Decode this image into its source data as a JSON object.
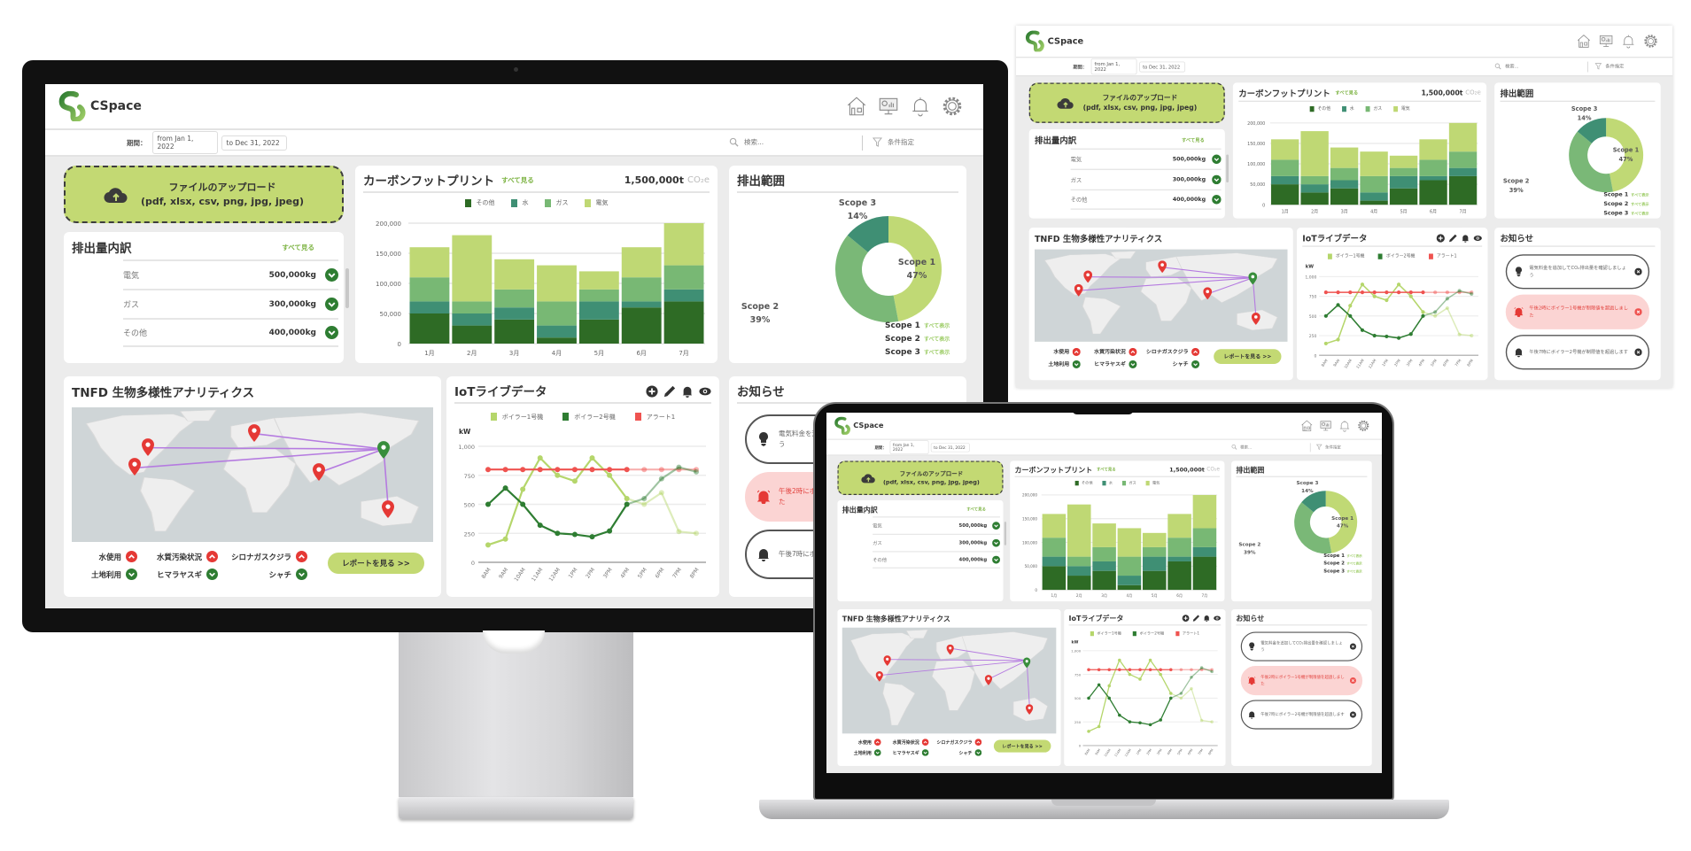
{
  "app": {
    "name": "CSpace"
  },
  "header": {
    "icons": [
      "home-icon",
      "dashboard-monitor-icon",
      "bell-icon",
      "gear-icon"
    ]
  },
  "filters": {
    "period_label": "期間：",
    "from": "from Jan 1, 2022",
    "to": "to Dec 31, 2022",
    "search_placeholder": "検索...",
    "condition_label": "条件指定"
  },
  "upload": {
    "title": "ファイルのアップロード",
    "formats": "(pdf, xlsx, csv, png, jpg, jpeg)"
  },
  "breakdown": {
    "title": "排出量内訳",
    "see_all": "すべて見る",
    "items": [
      {
        "label": "電気",
        "value": "500,000kg"
      },
      {
        "label": "ガス",
        "value": "300,000kg"
      },
      {
        "label": "その他",
        "value": "400,000kg"
      }
    ]
  },
  "carbon": {
    "title": "カーボンフットプリント",
    "see_all": "すべて見る",
    "total": "1,500,000t",
    "unit": "CO₂e"
  },
  "scope": {
    "title": "排出範囲",
    "legend_link": "すべて表示"
  },
  "tnfd": {
    "title": "TNFD 生物多様性アナリティクス",
    "indicators": [
      {
        "label": "水使用",
        "status": "up"
      },
      {
        "label": "水質汚染状況",
        "status": "up"
      },
      {
        "label": "シロナガスクジラ",
        "status": "up"
      },
      {
        "label": "土地利用",
        "status": "down"
      },
      {
        "label": "ヒマラヤスギ",
        "status": "down"
      },
      {
        "label": "シャチ",
        "status": "down"
      }
    ],
    "report_button": "レポートを見る >>"
  },
  "iot": {
    "title": "IoTライブデータ",
    "unit": "kW",
    "icons": [
      "plus-circle-icon",
      "pencil-icon",
      "bell-icon",
      "eye-icon"
    ]
  },
  "notices": {
    "title": "お知らせ",
    "items": [
      {
        "text": "電気料金を追加してCO₂排出量を確認しましょう",
        "type": "info",
        "icon": "lightbulb-icon"
      },
      {
        "text": "午後2時にボイラー1号機が制限値を超過しました",
        "type": "alert",
        "icon": "alarm-bell-icon"
      },
      {
        "text": "午後7時にボイラー2号機が制限値を超過します",
        "type": "warning",
        "icon": "bell-icon"
      }
    ]
  },
  "colors": {
    "accent": "#c3d973",
    "link": "#7cb342",
    "check": "#2e7d32",
    "alert": "#e53935",
    "alert_bg": "#fbd4d3",
    "route": "#b57be0"
  },
  "chart_data": [
    {
      "type": "bar",
      "stacked": true,
      "categories": [
        "1月",
        "2月",
        "3月",
        "4月",
        "5月",
        "6月",
        "7月"
      ],
      "series": [
        {
          "name": "その他",
          "color": "#2e6b25",
          "values": [
            50000,
            30000,
            40000,
            10000,
            40000,
            60000,
            70000
          ]
        },
        {
          "name": "水",
          "color": "#3f8f74",
          "values": [
            20000,
            20000,
            20000,
            20000,
            30000,
            10000,
            20000
          ]
        },
        {
          "name": "ガス",
          "color": "#78b874",
          "values": [
            40000,
            20000,
            30000,
            40000,
            20000,
            40000,
            40000
          ]
        },
        {
          "name": "電気",
          "color": "#bfd874",
          "values": [
            50000,
            110000,
            50000,
            60000,
            30000,
            50000,
            70000
          ]
        }
      ],
      "ylim": [
        0,
        200000
      ],
      "yticks": [
        0,
        50000,
        100000,
        150000,
        200000
      ],
      "grid": true,
      "legend": "top"
    },
    {
      "type": "pie",
      "donut": true,
      "slices": [
        {
          "label": "Scope 1",
          "value": 47,
          "color": "#c0d975"
        },
        {
          "label": "Scope 2",
          "value": 39,
          "color": "#7ab877"
        },
        {
          "label": "Scope 3",
          "value": 14,
          "color": "#3f8f74"
        }
      ],
      "legend": "bottom-right"
    },
    {
      "type": "line",
      "x": [
        "8AM",
        "9AM",
        "10AM",
        "11AM",
        "12AM",
        "1PM",
        "2PM",
        "3PM",
        "4PM",
        "5PM",
        "6PM",
        "7PM",
        "8PM"
      ],
      "ylabel": "kW",
      "ylim": [
        0,
        1000
      ],
      "yticks": [
        0,
        250,
        500,
        750,
        1000
      ],
      "series": [
        {
          "name": "ボイラー1号機",
          "color": "#b5d66b",
          "values": [
            150,
            200,
            630,
            900,
            750,
            700,
            900,
            750,
            550,
            500,
            600,
            265,
            250
          ]
        },
        {
          "name": "ボイラー2号機",
          "color": "#2e7d32",
          "values": [
            500,
            640,
            500,
            320,
            250,
            240,
            220,
            270,
            500,
            550,
            720,
            820,
            780
          ]
        },
        {
          "name": "アラート1",
          "color": "#ef5350",
          "values": [
            800,
            800,
            800,
            800,
            800,
            800,
            800,
            800,
            800,
            800,
            800,
            800,
            800
          ]
        }
      ],
      "grid": true,
      "legend": "top"
    }
  ]
}
